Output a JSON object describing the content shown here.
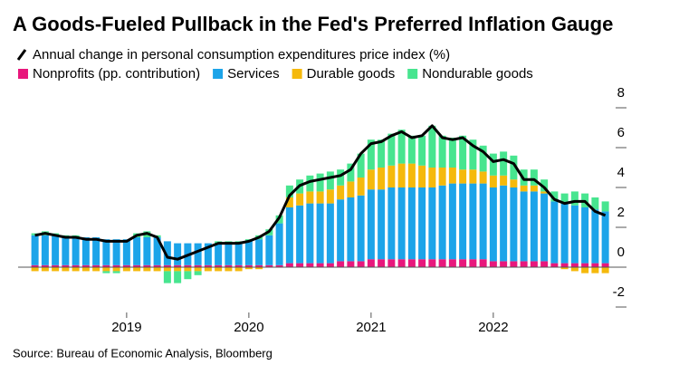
{
  "chart_data": {
    "type": "stacked_bar_line",
    "title": "A Goods-Fueled Pullback in the Fed's Preferred Inflation Gauge",
    "source": "Source: Bureau of Economic Analysis, Bloomberg",
    "categories": [
      null,
      null,
      null,
      null,
      null,
      null,
      null,
      null,
      null,
      "2019",
      null,
      null,
      null,
      null,
      null,
      null,
      null,
      null,
      null,
      null,
      null,
      "2020",
      null,
      null,
      null,
      null,
      null,
      null,
      null,
      null,
      null,
      null,
      null,
      "2021",
      null,
      null,
      null,
      null,
      null,
      null,
      null,
      null,
      null,
      null,
      null,
      "2022",
      null,
      null,
      null,
      null,
      null,
      null,
      null,
      null,
      null,
      null,
      null
    ],
    "series": [
      {
        "name": "Nonprofits (pp. contribution)",
        "color": "#e8177c",
        "values": [
          0.1,
          0.1,
          0.1,
          0.1,
          0.1,
          0.1,
          0.1,
          0.1,
          0.1,
          0.1,
          0.1,
          0.1,
          0.1,
          0.1,
          0.1,
          0.1,
          0.1,
          0.1,
          0.1,
          0.1,
          0.1,
          0.1,
          0.1,
          0.1,
          0.1,
          0.2,
          0.2,
          0.2,
          0.2,
          0.2,
          0.3,
          0.3,
          0.3,
          0.4,
          0.4,
          0.4,
          0.4,
          0.4,
          0.4,
          0.4,
          0.4,
          0.4,
          0.4,
          0.4,
          0.4,
          0.3,
          0.3,
          0.3,
          0.3,
          0.3,
          0.3,
          0.2,
          0.2,
          0.2,
          0.2,
          0.2,
          0.2
        ]
      },
      {
        "name": "Services",
        "color": "#1ca4e9",
        "values": [
          1.5,
          1.5,
          1.5,
          1.4,
          1.4,
          1.4,
          1.4,
          1.3,
          1.3,
          1.3,
          1.4,
          1.4,
          1.4,
          1.2,
          1.1,
          1.1,
          1.1,
          1.1,
          1.1,
          1.1,
          1.1,
          1.2,
          1.3,
          1.5,
          2.1,
          2.8,
          2.9,
          3.0,
          3.0,
          3.0,
          3.1,
          3.2,
          3.3,
          3.5,
          3.5,
          3.6,
          3.6,
          3.6,
          3.6,
          3.6,
          3.7,
          3.8,
          3.8,
          3.8,
          3.8,
          3.7,
          3.8,
          3.7,
          3.5,
          3.5,
          3.4,
          3.1,
          3.0,
          2.9,
          2.8,
          2.7,
          2.6
        ]
      },
      {
        "name": "Durable goods",
        "color": "#f5b90c",
        "values": [
          -0.2,
          -0.2,
          -0.2,
          -0.2,
          -0.2,
          -0.2,
          -0.2,
          -0.2,
          -0.2,
          -0.2,
          -0.2,
          -0.2,
          -0.2,
          -0.2,
          -0.2,
          -0.2,
          -0.2,
          -0.2,
          -0.2,
          -0.2,
          -0.2,
          -0.1,
          -0.1,
          0.0,
          0.0,
          0.5,
          0.6,
          0.6,
          0.6,
          0.7,
          0.7,
          0.8,
          0.9,
          1.0,
          1.1,
          1.1,
          1.2,
          1.2,
          1.1,
          1.0,
          0.9,
          0.8,
          0.7,
          0.7,
          0.6,
          0.6,
          0.5,
          0.4,
          0.3,
          0.3,
          0.1,
          0.0,
          -0.1,
          -0.2,
          -0.3,
          -0.3,
          -0.3
        ]
      },
      {
        "name": "Nondurable goods",
        "color": "#47e58f",
        "values": [
          0.1,
          0.2,
          0.1,
          0.1,
          0.1,
          0.0,
          0.0,
          -0.1,
          -0.1,
          0.0,
          0.2,
          0.3,
          0.1,
          -0.6,
          -0.6,
          -0.4,
          -0.2,
          0.0,
          0.1,
          0.1,
          0.1,
          0.1,
          0.2,
          0.3,
          0.4,
          0.6,
          0.7,
          0.8,
          0.9,
          0.9,
          0.8,
          0.9,
          1.2,
          1.5,
          1.4,
          1.6,
          1.7,
          1.4,
          1.5,
          2.1,
          1.6,
          1.5,
          1.7,
          1.5,
          1.3,
          1.1,
          1.2,
          1.2,
          0.8,
          0.8,
          0.6,
          0.5,
          0.5,
          0.7,
          0.7,
          0.6,
          0.5
        ]
      }
    ],
    "line": {
      "name": "Annual change in personal consumption expenditures price index (%)",
      "color": "#000000",
      "values": [
        1.6,
        1.7,
        1.6,
        1.5,
        1.5,
        1.4,
        1.4,
        1.3,
        1.3,
        1.3,
        1.6,
        1.7,
        1.5,
        0.5,
        0.4,
        0.6,
        0.8,
        1.0,
        1.2,
        1.2,
        1.2,
        1.3,
        1.5,
        1.8,
        2.5,
        3.6,
        4.1,
        4.3,
        4.4,
        4.5,
        4.6,
        4.9,
        5.7,
        6.2,
        6.3,
        6.6,
        6.8,
        6.5,
        6.6,
        7.1,
        6.5,
        6.4,
        6.5,
        6.1,
        5.8,
        5.3,
        5.4,
        5.2,
        4.4,
        4.4,
        4.0,
        3.4,
        3.2,
        3.3,
        3.3,
        2.8,
        2.6
      ]
    },
    "ylim": [
      -2,
      8
    ],
    "yticks": [
      -2,
      0,
      2,
      4,
      6,
      8
    ],
    "grid": false
  }
}
